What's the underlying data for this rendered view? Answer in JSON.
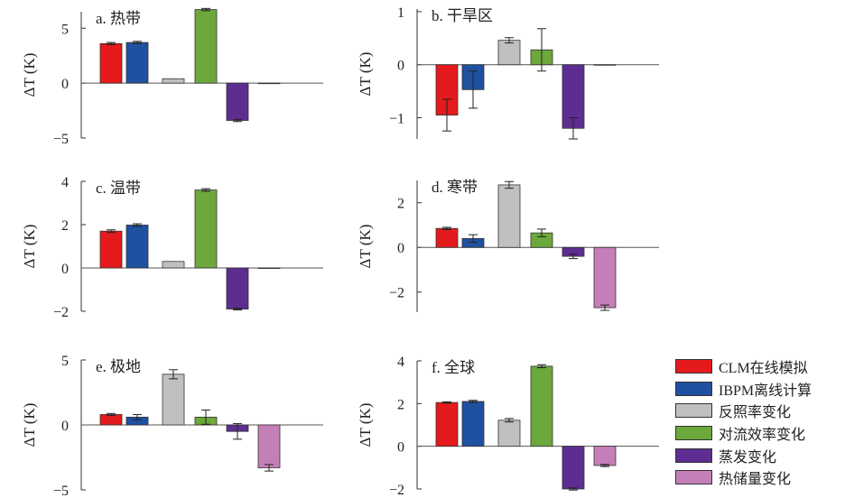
{
  "ylabel": "ΔT (K)",
  "colors": {
    "clm": "#e41a1c",
    "ibpm": "#2050a0",
    "albedo": "#c0c0c0",
    "convection": "#6ca83c",
    "evaporation": "#5e2d91",
    "heat_storage": "#c57fb8"
  },
  "legend": [
    {
      "key": "clm",
      "label": "CLM在线模拟"
    },
    {
      "key": "ibpm",
      "label": "IBPM离线计算"
    },
    {
      "key": "albedo",
      "label": "反照率变化"
    },
    {
      "key": "convection",
      "label": "对流效率变化"
    },
    {
      "key": "evaporation",
      "label": "蒸发变化"
    },
    {
      "key": "heat_storage",
      "label": "热储量变化"
    }
  ],
  "chart_data": [
    {
      "type": "bar",
      "title": "a. 热带",
      "ylabel": "ΔT (K)",
      "ylim": [
        -5,
        6.5
      ],
      "yticks": [
        -5,
        0,
        5
      ],
      "ytick_labels": [
        "−5",
        "0",
        "5"
      ],
      "series": [
        {
          "key": "clm",
          "value": 3.6,
          "error": 0.1
        },
        {
          "key": "ibpm",
          "value": 3.7,
          "error": 0.1
        },
        {
          "key": "albedo",
          "value": 0.4,
          "error": 0
        },
        {
          "key": "convection",
          "value": 6.7,
          "error": 0.1
        },
        {
          "key": "evaporation",
          "value": -3.4,
          "error": 0.1
        },
        {
          "key": "heat_storage",
          "value": 0.0,
          "error": 0
        }
      ]
    },
    {
      "type": "bar",
      "title": "b. 干旱区",
      "ylabel": "ΔT (K)",
      "ylim": [
        -1.4,
        1.05
      ],
      "yticks": [
        -1,
        0,
        1
      ],
      "ytick_labels": [
        "−1",
        "0",
        "1"
      ],
      "series": [
        {
          "key": "clm",
          "value": -0.95,
          "error": 0.3
        },
        {
          "key": "ibpm",
          "value": -0.47,
          "error": 0.35
        },
        {
          "key": "albedo",
          "value": 0.46,
          "error": 0.05
        },
        {
          "key": "convection",
          "value": 0.28,
          "error": 0.4
        },
        {
          "key": "evaporation",
          "value": -1.2,
          "error": 0.2
        },
        {
          "key": "heat_storage",
          "value": -0.01,
          "error": 0
        }
      ]
    },
    {
      "type": "bar",
      "title": "c. 温带",
      "ylabel": "ΔT (K)",
      "ylim": [
        -2,
        4
      ],
      "yticks": [
        -2,
        0,
        2,
        4
      ],
      "ytick_labels": [
        "−2",
        "0",
        "2",
        "4"
      ],
      "series": [
        {
          "key": "clm",
          "value": 1.7,
          "error": 0.06
        },
        {
          "key": "ibpm",
          "value": 1.98,
          "error": 0.06
        },
        {
          "key": "albedo",
          "value": 0.3,
          "error": 0
        },
        {
          "key": "convection",
          "value": 3.6,
          "error": 0.06
        },
        {
          "key": "evaporation",
          "value": -1.9,
          "error": 0.04
        },
        {
          "key": "heat_storage",
          "value": 0.0,
          "error": 0
        }
      ]
    },
    {
      "type": "bar",
      "title": "d. 寒带",
      "ylabel": "ΔT (K)",
      "ylim": [
        -2.9,
        3.0
      ],
      "yticks": [
        -2,
        0,
        2
      ],
      "ytick_labels": [
        "−2",
        "0",
        "2"
      ],
      "series": [
        {
          "key": "clm",
          "value": 0.85,
          "error": 0.05
        },
        {
          "key": "ibpm",
          "value": 0.4,
          "error": 0.17
        },
        {
          "key": "albedo",
          "value": 2.8,
          "error": 0.15
        },
        {
          "key": "convection",
          "value": 0.65,
          "error": 0.17
        },
        {
          "key": "evaporation",
          "value": -0.4,
          "error": 0.1
        },
        {
          "key": "heat_storage",
          "value": -2.7,
          "error": 0.12
        }
      ]
    },
    {
      "type": "bar",
      "title": "e. 极地",
      "ylabel": "ΔT (K)",
      "ylim": [
        -5,
        5
      ],
      "yticks": [
        -5,
        0,
        5
      ],
      "ytick_labels": [
        "−5",
        "0",
        "5"
      ],
      "series": [
        {
          "key": "clm",
          "value": 0.8,
          "error": 0.08
        },
        {
          "key": "ibpm",
          "value": 0.6,
          "error": 0.2
        },
        {
          "key": "albedo",
          "value": 3.9,
          "error": 0.35
        },
        {
          "key": "convection",
          "value": 0.6,
          "error": 0.55
        },
        {
          "key": "evaporation",
          "value": -0.5,
          "error": 0.6
        },
        {
          "key": "heat_storage",
          "value": -3.3,
          "error": 0.25
        }
      ]
    },
    {
      "type": "bar",
      "title": "f. 全球",
      "ylabel": "ΔT (K)",
      "ylim": [
        -2,
        4
      ],
      "yticks": [
        -2,
        0,
        2,
        4
      ],
      "ytick_labels": [
        "−2",
        "0",
        "2",
        "4"
      ],
      "series": [
        {
          "key": "clm",
          "value": 2.05,
          "error": 0.03
        },
        {
          "key": "ibpm",
          "value": 2.1,
          "error": 0.05
        },
        {
          "key": "albedo",
          "value": 1.22,
          "error": 0.08
        },
        {
          "key": "convection",
          "value": 3.75,
          "error": 0.07
        },
        {
          "key": "evaporation",
          "value": -2.0,
          "error": 0.05
        },
        {
          "key": "heat_storage",
          "value": -0.9,
          "error": 0.05
        }
      ]
    }
  ]
}
